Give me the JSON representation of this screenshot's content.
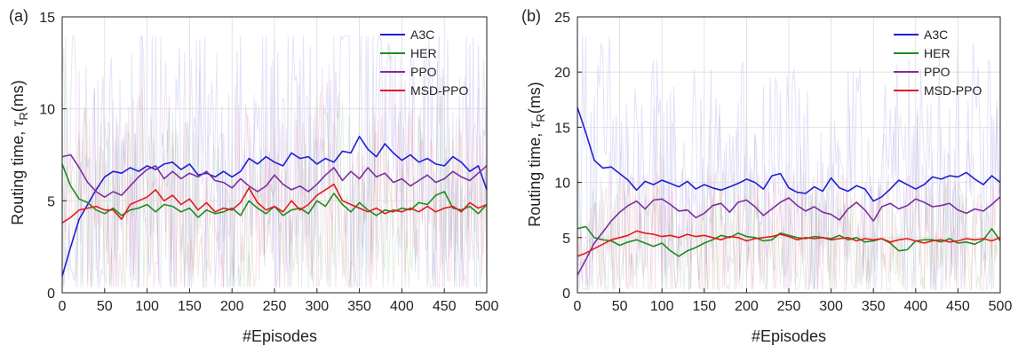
{
  "chart_data": [
    {
      "type": "line",
      "panel_label": "(a)",
      "xlabel": "#Episodes",
      "ylabel": "Routing time, τR(ms)",
      "ylabel_main": "Routing time, ",
      "ylabel_symbol": "τ",
      "ylabel_sub": "R",
      "ylabel_unit": "(ms)",
      "xlim": [
        0,
        500
      ],
      "ylim": [
        0,
        15
      ],
      "xticks": [
        0,
        50,
        100,
        150,
        200,
        250,
        300,
        350,
        400,
        450,
        500
      ],
      "yticks": [
        0,
        5,
        10,
        15
      ],
      "grid": true,
      "legend_position": "top-right",
      "x": [
        0,
        10,
        20,
        30,
        40,
        50,
        60,
        70,
        80,
        90,
        100,
        110,
        120,
        130,
        140,
        150,
        160,
        170,
        180,
        190,
        200,
        210,
        220,
        230,
        240,
        250,
        260,
        270,
        280,
        290,
        300,
        310,
        320,
        330,
        340,
        350,
        360,
        370,
        380,
        390,
        400,
        410,
        420,
        430,
        440,
        450,
        460,
        470,
        480,
        490,
        500
      ],
      "series": [
        {
          "name": "A3C",
          "color": "#1f1fd6",
          "values": [
            0.9,
            2.5,
            4.0,
            4.8,
            5.6,
            6.3,
            6.6,
            6.5,
            6.8,
            6.6,
            6.9,
            6.7,
            7.0,
            7.1,
            6.7,
            7.0,
            6.4,
            6.5,
            6.3,
            6.6,
            6.3,
            6.6,
            7.3,
            7.0,
            7.4,
            7.1,
            6.9,
            7.6,
            7.3,
            7.4,
            7.0,
            7.3,
            7.1,
            7.7,
            7.6,
            8.5,
            7.8,
            7.4,
            8.1,
            7.6,
            7.2,
            7.5,
            7.1,
            7.3,
            7.0,
            6.9,
            7.4,
            7.1,
            6.6,
            6.9,
            5.6
          ]
        },
        {
          "name": "HER",
          "color": "#1e8c1e",
          "values": [
            7.0,
            5.8,
            5.1,
            4.9,
            4.5,
            4.3,
            4.6,
            4.2,
            4.5,
            4.6,
            4.8,
            4.4,
            4.8,
            4.7,
            4.4,
            4.6,
            4.1,
            4.5,
            4.3,
            4.4,
            4.6,
            4.2,
            5.0,
            4.6,
            4.3,
            4.7,
            4.2,
            4.5,
            4.6,
            4.3,
            5.0,
            4.7,
            5.4,
            4.8,
            4.4,
            4.9,
            4.5,
            4.2,
            4.5,
            4.4,
            4.6,
            4.5,
            4.9,
            4.8,
            5.3,
            5.5,
            4.6,
            4.5,
            4.7,
            4.3,
            4.8
          ]
        },
        {
          "name": "PPO",
          "color": "#7b2fa0",
          "values": [
            7.4,
            7.5,
            6.8,
            6.0,
            5.5,
            5.2,
            5.5,
            5.3,
            5.8,
            6.3,
            6.7,
            6.9,
            6.2,
            6.6,
            6.2,
            6.5,
            6.3,
            6.6,
            6.1,
            6.0,
            5.7,
            6.2,
            5.8,
            5.5,
            5.8,
            6.4,
            5.9,
            5.6,
            5.8,
            5.5,
            5.9,
            6.4,
            6.8,
            6.1,
            6.6,
            6.2,
            6.8,
            6.3,
            6.5,
            6.0,
            6.2,
            5.8,
            6.1,
            6.4,
            6.0,
            6.2,
            6.6,
            6.3,
            6.1,
            6.5,
            6.9
          ]
        },
        {
          "name": "MSD-PPO",
          "color": "#e01c1c",
          "values": [
            3.8,
            4.1,
            4.5,
            4.6,
            4.7,
            4.5,
            4.5,
            4.0,
            4.8,
            5.0,
            5.2,
            5.6,
            5.0,
            5.3,
            4.8,
            5.1,
            4.5,
            4.9,
            4.4,
            4.6,
            4.5,
            4.9,
            5.7,
            4.9,
            4.5,
            4.7,
            4.4,
            5.0,
            4.5,
            4.8,
            5.3,
            5.6,
            5.9,
            5.0,
            4.8,
            4.6,
            4.4,
            4.6,
            4.3,
            4.5,
            4.4,
            4.6,
            4.4,
            4.7,
            4.4,
            4.6,
            4.7,
            4.4,
            4.9,
            4.6,
            4.8
          ]
        }
      ]
    },
    {
      "type": "line",
      "panel_label": "(b)",
      "xlabel": "#Episodes",
      "ylabel": "Routing time, τR(ms)",
      "ylabel_main": "Routing time, ",
      "ylabel_symbol": "τ",
      "ylabel_sub": "R",
      "ylabel_unit": "(ms)",
      "xlim": [
        0,
        500
      ],
      "ylim": [
        0,
        25
      ],
      "xticks": [
        0,
        50,
        100,
        150,
        200,
        250,
        300,
        350,
        400,
        450,
        500
      ],
      "yticks": [
        0,
        5,
        10,
        15,
        20,
        25
      ],
      "grid": true,
      "legend_position": "top-right",
      "x": [
        0,
        10,
        20,
        30,
        40,
        50,
        60,
        70,
        80,
        90,
        100,
        110,
        120,
        130,
        140,
        150,
        160,
        170,
        180,
        190,
        200,
        210,
        220,
        230,
        240,
        250,
        260,
        270,
        280,
        290,
        300,
        310,
        320,
        330,
        340,
        350,
        360,
        370,
        380,
        390,
        400,
        410,
        420,
        430,
        440,
        450,
        460,
        470,
        480,
        490,
        500
      ],
      "series": [
        {
          "name": "A3C",
          "color": "#1f1fd6",
          "values": [
            16.8,
            14.5,
            12.0,
            11.3,
            11.4,
            10.8,
            10.2,
            9.3,
            10.1,
            9.8,
            10.2,
            9.9,
            9.6,
            10.1,
            9.4,
            9.8,
            9.5,
            9.3,
            9.6,
            9.9,
            10.3,
            10.0,
            9.4,
            10.6,
            10.8,
            9.5,
            9.1,
            9.0,
            9.6,
            9.2,
            10.4,
            9.5,
            9.2,
            9.7,
            9.4,
            8.3,
            8.7,
            9.4,
            10.2,
            9.8,
            9.4,
            9.8,
            10.5,
            10.3,
            10.6,
            10.5,
            10.9,
            10.3,
            9.8,
            10.6,
            10.0
          ]
        },
        {
          "name": "HER",
          "color": "#1e8c1e",
          "values": [
            5.8,
            6.0,
            5.0,
            4.8,
            4.7,
            4.3,
            4.6,
            4.8,
            4.5,
            4.2,
            4.5,
            3.8,
            3.3,
            3.8,
            4.1,
            4.5,
            4.8,
            5.2,
            5.0,
            5.4,
            5.1,
            5.0,
            4.7,
            4.8,
            5.4,
            5.2,
            5.0,
            4.9,
            5.1,
            5.0,
            4.9,
            5.2,
            4.8,
            5.0,
            4.6,
            4.7,
            4.9,
            4.5,
            3.8,
            3.9,
            4.7,
            4.8,
            4.8,
            4.6,
            4.9,
            4.5,
            4.6,
            4.4,
            4.8,
            5.8,
            4.7
          ]
        },
        {
          "name": "PPO",
          "color": "#7b2fa0",
          "values": [
            1.6,
            3.0,
            4.5,
            5.5,
            6.5,
            7.3,
            7.9,
            8.3,
            7.6,
            8.4,
            8.5,
            8.0,
            7.4,
            7.5,
            6.8,
            7.2,
            7.9,
            8.1,
            7.3,
            8.2,
            8.4,
            7.8,
            7.0,
            7.6,
            8.2,
            8.6,
            7.9,
            7.4,
            7.8,
            7.3,
            7.1,
            6.6,
            7.6,
            8.2,
            7.5,
            6.5,
            7.8,
            8.1,
            7.6,
            7.9,
            8.5,
            8.2,
            7.8,
            7.9,
            8.1,
            7.5,
            7.2,
            7.6,
            7.4,
            8.0,
            8.7
          ]
        },
        {
          "name": "MSD-PPO",
          "color": "#e01c1c",
          "values": [
            3.3,
            3.6,
            4.0,
            4.4,
            4.8,
            5.0,
            5.2,
            5.6,
            5.4,
            5.3,
            5.1,
            5.2,
            5.0,
            5.3,
            5.1,
            5.2,
            5.0,
            4.8,
            5.1,
            5.0,
            4.7,
            4.9,
            5.0,
            5.1,
            5.3,
            5.1,
            4.8,
            5.0,
            4.9,
            5.0,
            4.8,
            4.9,
            5.0,
            4.7,
            4.9,
            4.8,
            4.9,
            4.6,
            4.8,
            4.9,
            4.7,
            4.5,
            4.7,
            4.8,
            4.6,
            4.7,
            4.9,
            4.8,
            4.9,
            4.7,
            5.0
          ]
        }
      ]
    }
  ]
}
